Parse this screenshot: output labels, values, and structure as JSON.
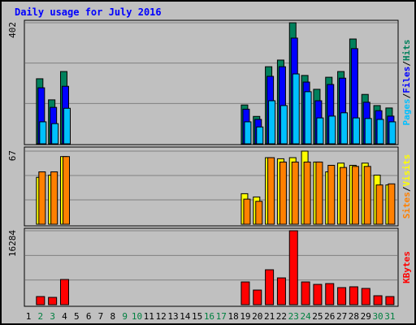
{
  "chart_data": [
    {
      "type": "bar",
      "title": "Daily usage for July 2016",
      "categories": [
        "1",
        "2",
        "3",
        "4",
        "5",
        "6",
        "7",
        "8",
        "9",
        "10",
        "11",
        "12",
        "13",
        "14",
        "15",
        "16",
        "17",
        "18",
        "19",
        "20",
        "21",
        "22",
        "23",
        "24",
        "25",
        "26",
        "27",
        "28",
        "29",
        "30",
        "31"
      ],
      "category_colors": [
        "#000000",
        "#008040",
        "#008040",
        "#000000",
        "#000000",
        "#000000",
        "#000000",
        "#000000",
        "#008040",
        "#008040",
        "#000000",
        "#000000",
        "#000000",
        "#000000",
        "#000000",
        "#008040",
        "#008040",
        "#000000",
        "#000000",
        "#000000",
        "#000000",
        "#000000",
        "#008040",
        "#008040",
        "#000000",
        "#000000",
        "#000000",
        "#000000",
        "#000000",
        "#008040",
        "#008040"
      ],
      "legend_separator": "/",
      "ylim": [
        0,
        402
      ],
      "yticks": [
        402
      ],
      "series": [
        {
          "name": "Hits",
          "color": "#00805c",
          "values": [
            0,
            216,
            146,
            240,
            0,
            0,
            0,
            0,
            0,
            0,
            0,
            0,
            0,
            0,
            0,
            0,
            0,
            0,
            129,
            91,
            256,
            278,
            402,
            227,
            181,
            221,
            240,
            348,
            164,
            127,
            119
          ]
        },
        {
          "name": "Files",
          "color": "#0000ff",
          "values": [
            0,
            186,
            121,
            191,
            0,
            0,
            0,
            0,
            0,
            0,
            0,
            0,
            0,
            0,
            0,
            0,
            0,
            0,
            115,
            81,
            224,
            256,
            351,
            205,
            143,
            197,
            218,
            316,
            138,
            110,
            92
          ]
        },
        {
          "name": "Pages",
          "color": "#00c0ff",
          "values": [
            0,
            73,
            67,
            118,
            0,
            0,
            0,
            0,
            0,
            0,
            0,
            0,
            0,
            0,
            0,
            0,
            0,
            0,
            73,
            56,
            143,
            127,
            232,
            173,
            86,
            92,
            103,
            86,
            84,
            81,
            73
          ]
        }
      ]
    },
    {
      "type": "bar",
      "ylim": [
        0,
        67
      ],
      "yticks": [
        67
      ],
      "series": [
        {
          "name": "Visits",
          "color": "#ffff00",
          "values": [
            0,
            43,
            45,
            62,
            0,
            0,
            0,
            0,
            0,
            0,
            0,
            0,
            0,
            0,
            0,
            0,
            0,
            0,
            28,
            25,
            61,
            60,
            61,
            67,
            57,
            48,
            56,
            54,
            56,
            45,
            36
          ]
        },
        {
          "name": "Sites",
          "color": "#ff8000",
          "values": [
            0,
            48,
            48,
            62,
            0,
            0,
            0,
            0,
            0,
            0,
            0,
            0,
            0,
            0,
            0,
            0,
            0,
            0,
            23,
            21,
            61,
            57,
            57,
            57,
            57,
            54,
            52,
            53,
            53,
            36,
            37
          ]
        }
      ]
    },
    {
      "type": "bar",
      "ylim": [
        0,
        16284
      ],
      "yticks": [
        16284
      ],
      "series": [
        {
          "name": "KBytes",
          "color": "#ff0000",
          "values": [
            0,
            1790,
            1610,
            5550,
            0,
            0,
            0,
            0,
            0,
            0,
            0,
            0,
            0,
            0,
            0,
            0,
            0,
            0,
            5010,
            3220,
            7690,
            5900,
            16284,
            5010,
            4470,
            4650,
            3760,
            3940,
            3580,
            1970,
            1790
          ]
        }
      ]
    }
  ]
}
